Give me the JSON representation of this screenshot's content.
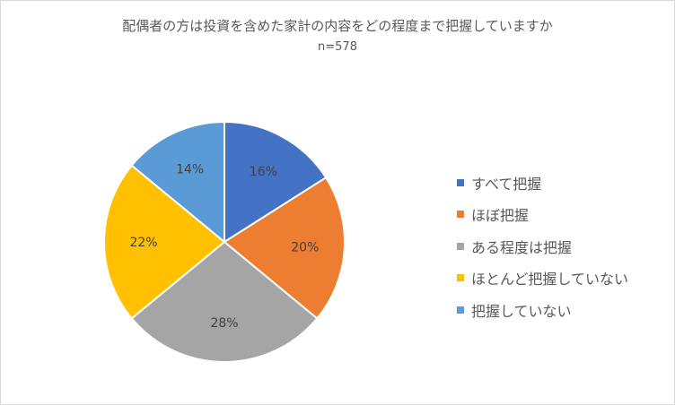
{
  "chart_data": {
    "type": "pie",
    "title": "配偶者の方は投資を含めた家計の内容をどの程度まで把握していますか",
    "subtitle": "n=578",
    "categories": [
      "すべて把握",
      "ほぼ把握",
      "ある程度は把握",
      "ほとんど把握していない",
      "把握していない"
    ],
    "values": [
      16,
      20,
      28,
      22,
      14
    ],
    "data_labels": [
      "16%",
      "20%",
      "28%",
      "22%",
      "14%"
    ],
    "colors": [
      "#4472C4",
      "#ED7D31",
      "#A5A5A5",
      "#FFC000",
      "#5B9BD5"
    ],
    "legend_position": "right",
    "start_angle": "12 o'clock",
    "direction": "clockwise"
  }
}
